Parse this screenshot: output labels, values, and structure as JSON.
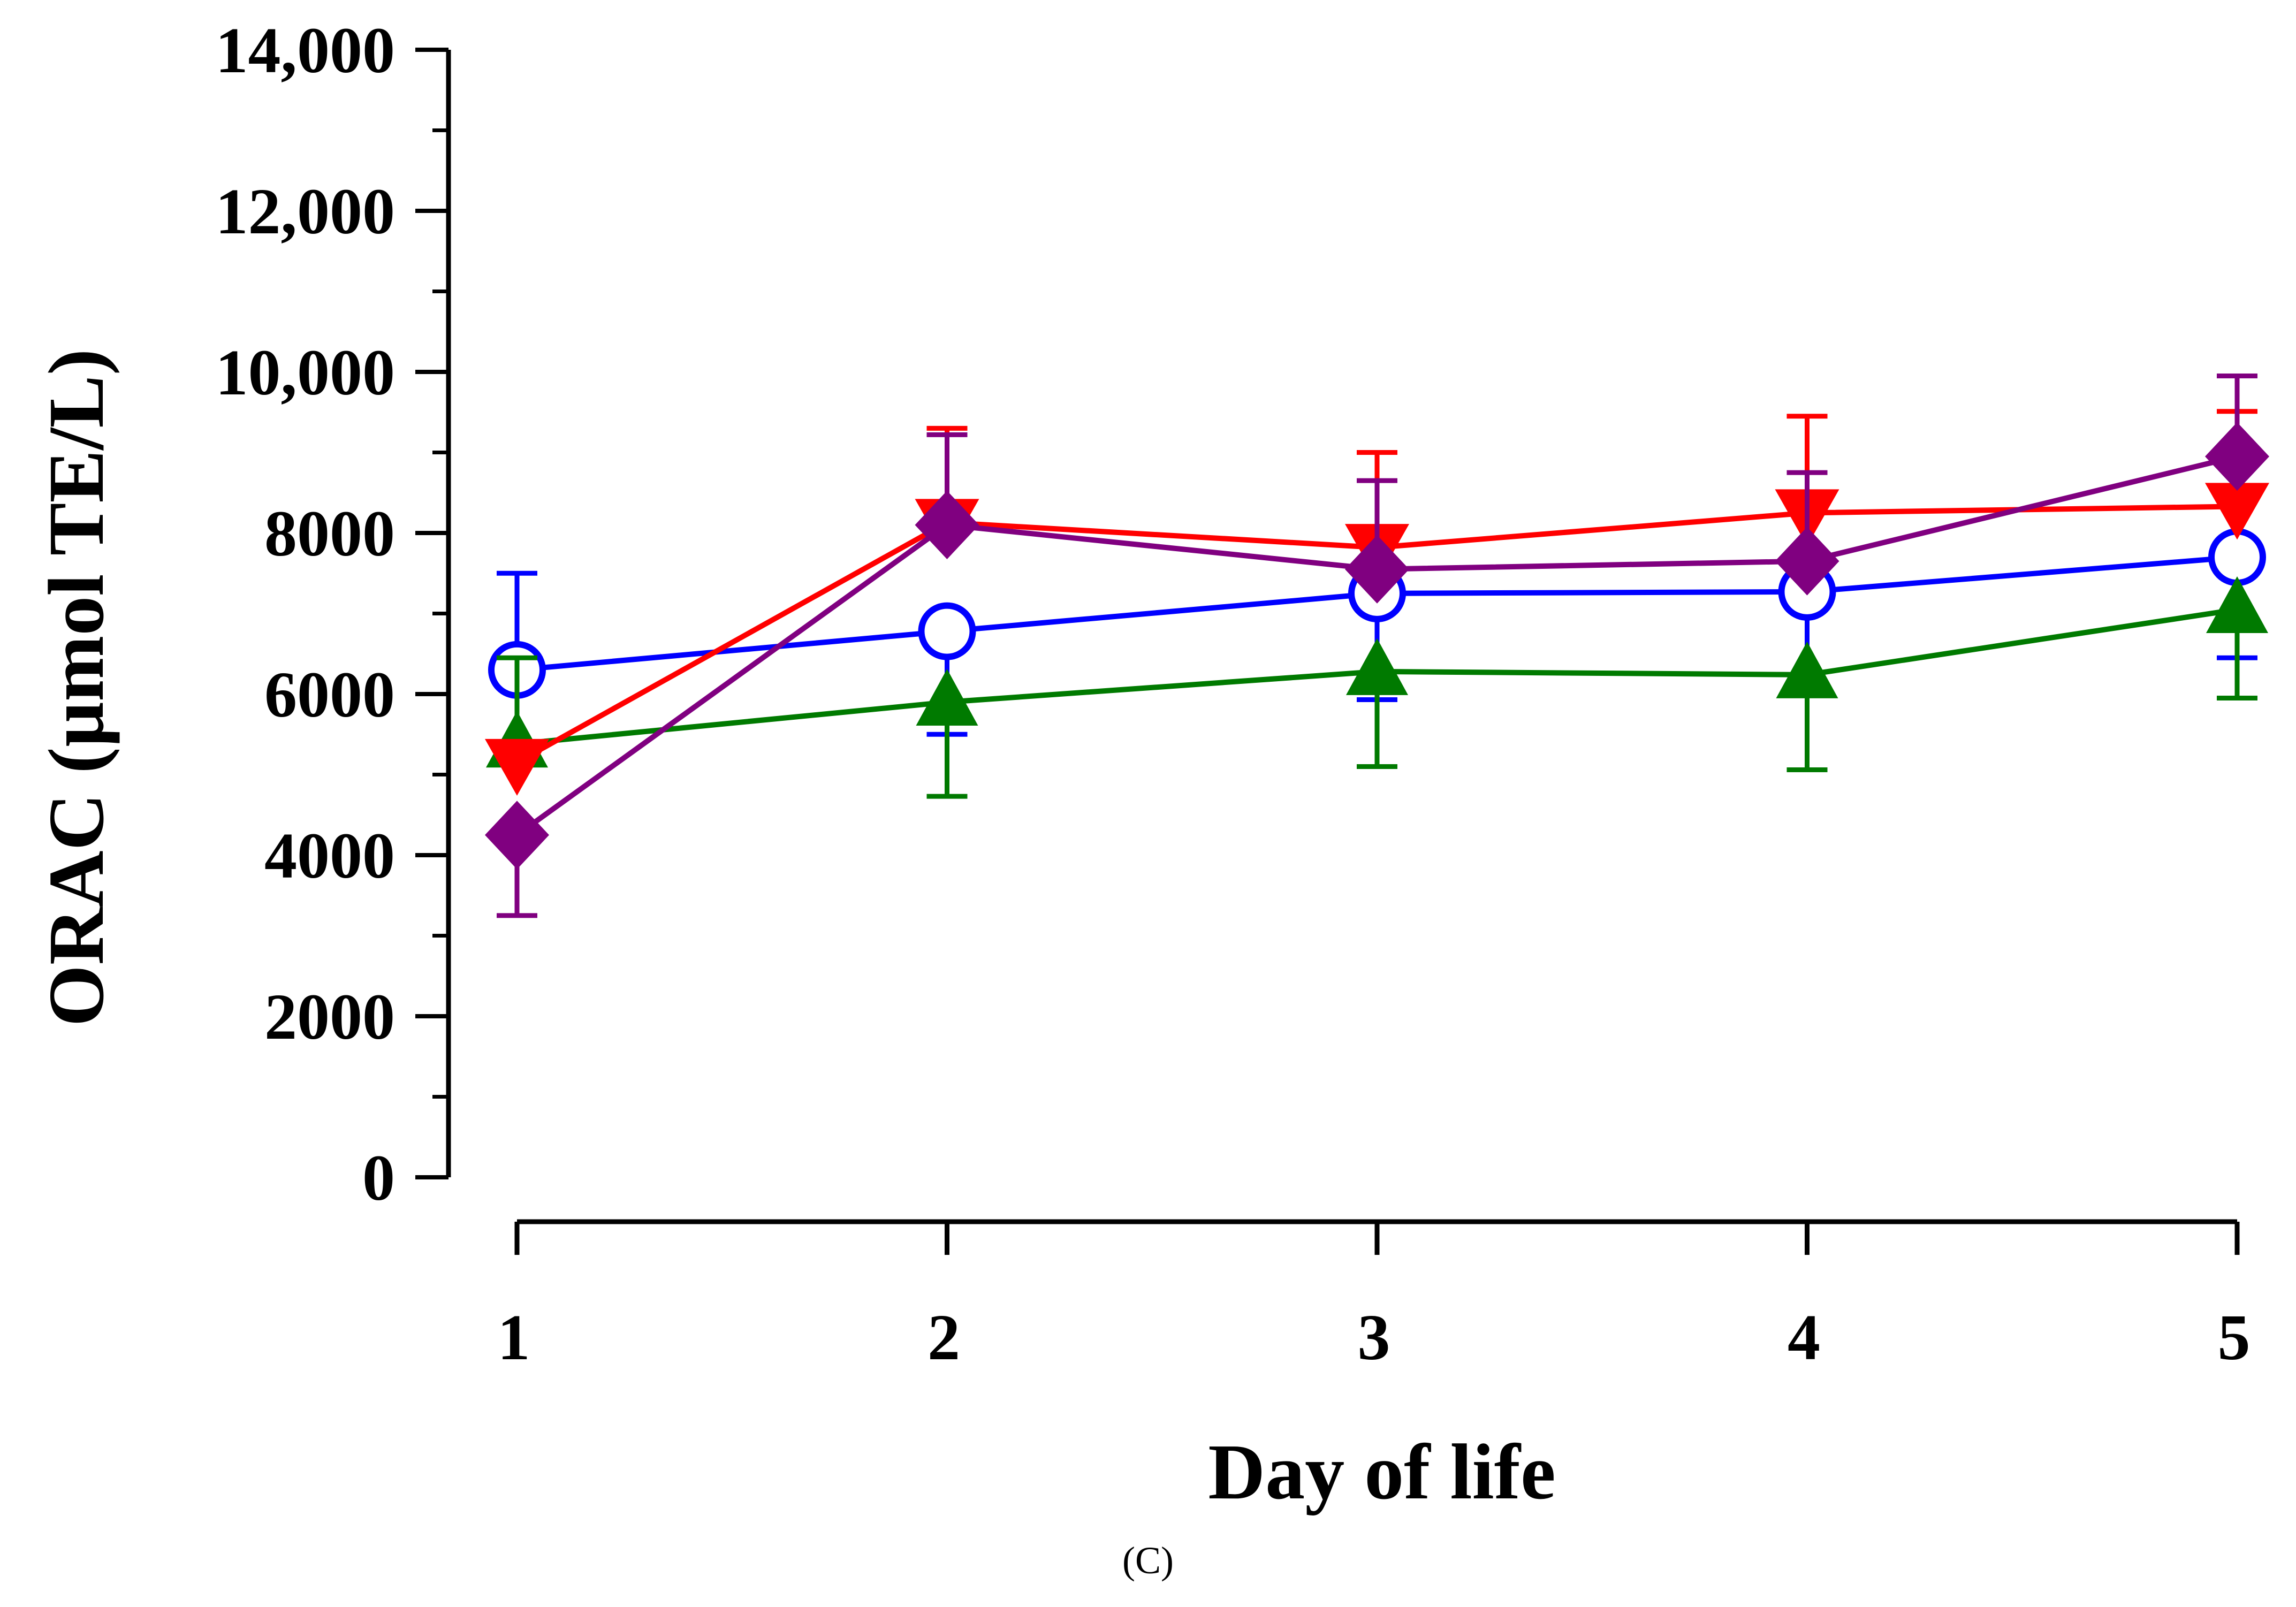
{
  "panel_label": "(C)",
  "chart_data": {
    "type": "line",
    "title": "",
    "xlabel": "Day of life",
    "ylabel": "ORAC (µmol TE/L)",
    "categories": [
      "1",
      "2",
      "3",
      "4",
      "5"
    ],
    "x": [
      1,
      2,
      3,
      4,
      5
    ],
    "xlim": [
      0.83,
      5.1
    ],
    "ylim": [
      0,
      14000
    ],
    "y_ticks": [
      0,
      2000,
      4000,
      6000,
      8000,
      10000,
      12000,
      14000
    ],
    "y_tick_labels": [
      "0",
      "2000",
      "4000",
      "6000",
      "8000",
      "10,000",
      "12,000",
      "14,000"
    ],
    "y_minor_step": 1000,
    "legend": "none",
    "grid": false,
    "series": [
      {
        "name": "series-blue-open-circle",
        "color": "#0000ff",
        "marker": "circle-open",
        "values": [
          6300,
          6780,
          7250,
          7270,
          7700
        ],
        "error_up": [
          1200,
          0,
          0,
          0,
          0
        ],
        "error_down": [
          0,
          1280,
          1320,
          1250,
          1250
        ]
      },
      {
        "name": "series-green-triangle",
        "color": "#007a00",
        "marker": "triangle-up",
        "values": [
          5380,
          5900,
          6280,
          6240,
          7050
        ],
        "error_up": [
          1070,
          0,
          0,
          0,
          0
        ],
        "error_down": [
          0,
          1170,
          1180,
          1180,
          1100
        ]
      },
      {
        "name": "series-red-triangle-down",
        "color": "#ff0000",
        "marker": "triangle-down",
        "values": [
          5150,
          8130,
          7820,
          8250,
          8330
        ],
        "error_up": [
          0,
          1170,
          1180,
          1200,
          1180
        ],
        "error_down": [
          0,
          0,
          0,
          0,
          0
        ]
      },
      {
        "name": "series-purple-diamond",
        "color": "#800080",
        "marker": "diamond",
        "values": [
          4250,
          8100,
          7550,
          7650,
          8950
        ],
        "error_up": [
          0,
          1120,
          1100,
          1100,
          1000
        ],
        "error_down": [
          1000,
          0,
          0,
          0,
          0
        ]
      }
    ]
  }
}
